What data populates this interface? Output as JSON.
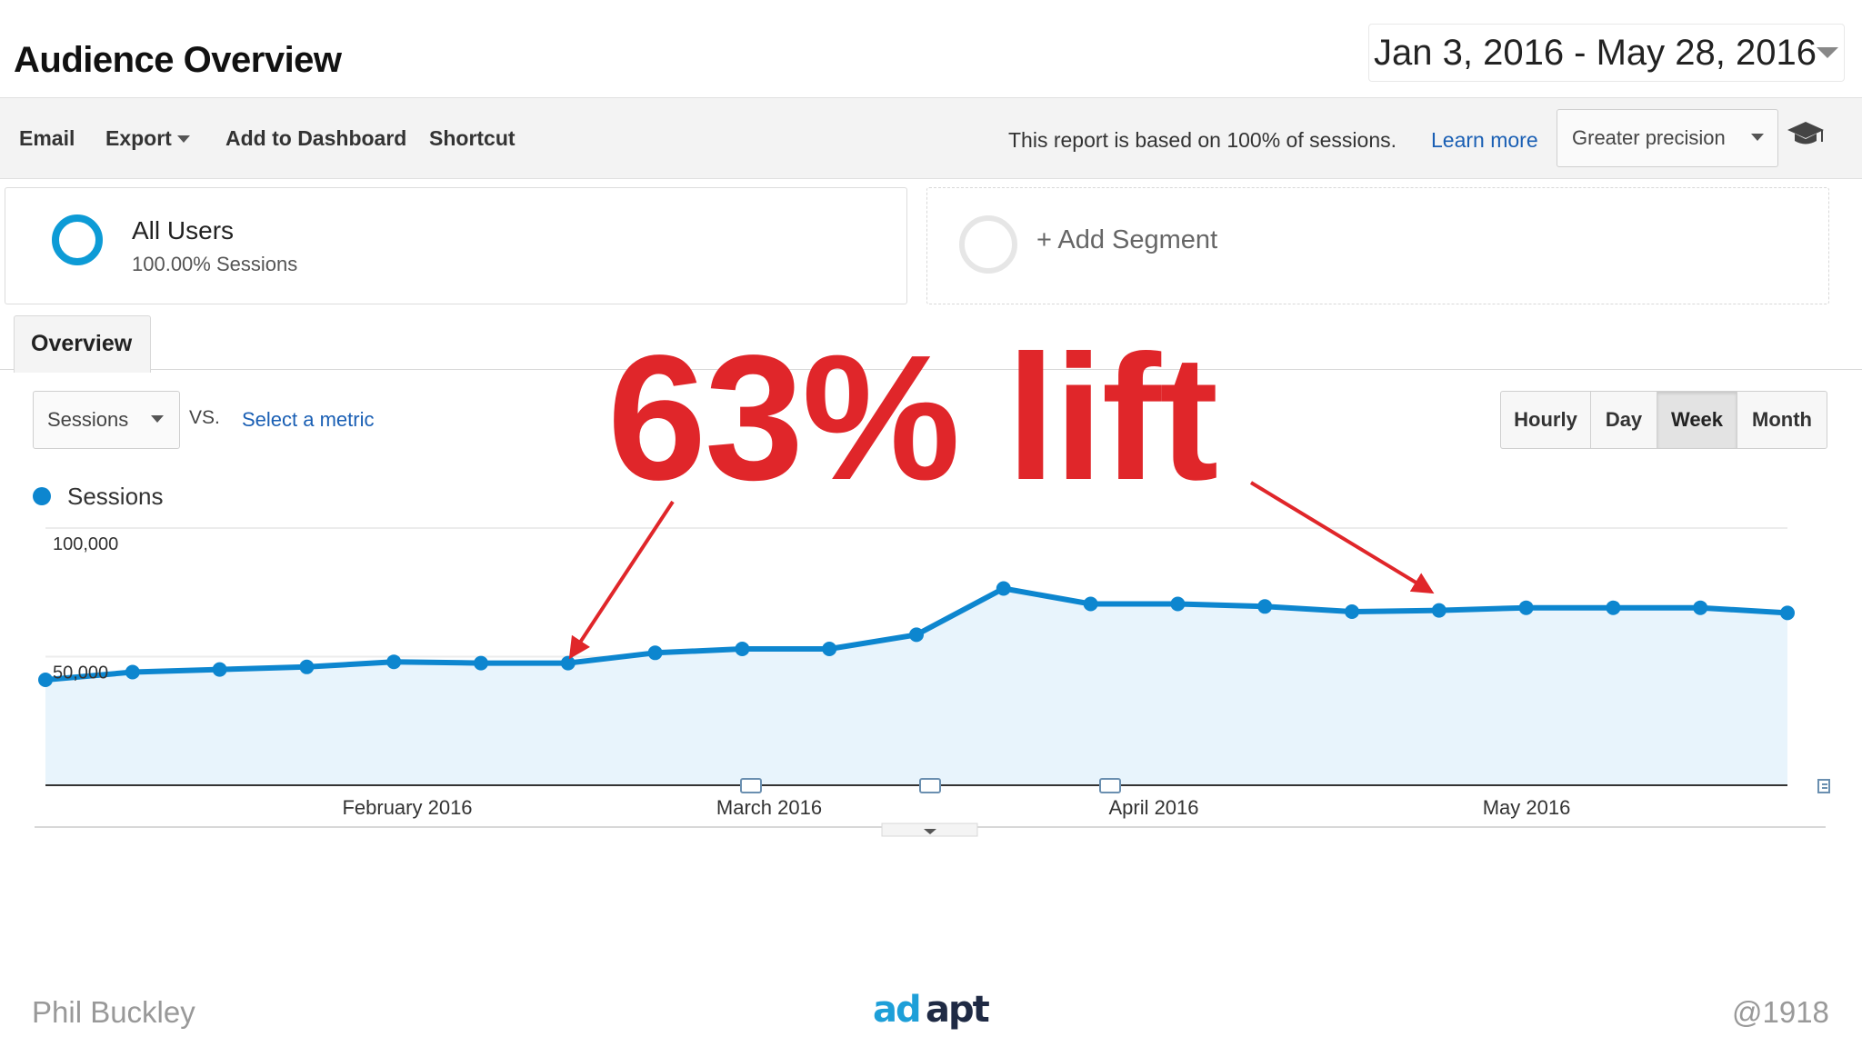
{
  "header": {
    "title": "Audience Overview",
    "date_range": "Jan 3, 2016 - May 28, 2016"
  },
  "toolbar": {
    "email": "Email",
    "export": "Export",
    "add_to_dashboard": "Add to Dashboard",
    "shortcut": "Shortcut",
    "report_note": "This report is based on 100% of sessions.",
    "learn_more": "Learn more",
    "precision": "Greater precision"
  },
  "segments": {
    "all_users": {
      "name": "All Users",
      "sub": "100.00% Sessions"
    },
    "add_segment": "+ Add Segment"
  },
  "tabs": [
    {
      "label": "Overview",
      "active": true
    }
  ],
  "controls": {
    "metric": "Sessions",
    "vs": "VS.",
    "select_metric": "Select a metric",
    "time_buttons": [
      {
        "label": "Hourly",
        "active": false
      },
      {
        "label": "Day",
        "active": false
      },
      {
        "label": "Week",
        "active": true
      },
      {
        "label": "Month",
        "active": false
      }
    ]
  },
  "legend": {
    "series": "Sessions",
    "color": "#0d86cf"
  },
  "chart_data": {
    "type": "area",
    "series": [
      {
        "name": "Sessions",
        "values": [
          41000,
          44000,
          45000,
          46000,
          48000,
          47500,
          47500,
          51500,
          53000,
          53000,
          58500,
          76500,
          70500,
          70500,
          69500,
          67500,
          68000,
          69000,
          69000,
          69000,
          67000
        ]
      }
    ],
    "y_ticks": [
      "100,000",
      "50,000"
    ],
    "ylim": [
      0,
      100000
    ],
    "x_ticks": [
      "February 2016",
      "March 2016",
      "April 2016",
      "May 2016"
    ],
    "grid": true,
    "fill_color": "#e8f4fc",
    "line_color": "#0d86cf"
  },
  "annotation": {
    "text": "63% lift",
    "color": "#e0262a"
  },
  "footer": {
    "left": "Phil Buckley",
    "right": "@1918",
    "logo_text": "adapt"
  }
}
